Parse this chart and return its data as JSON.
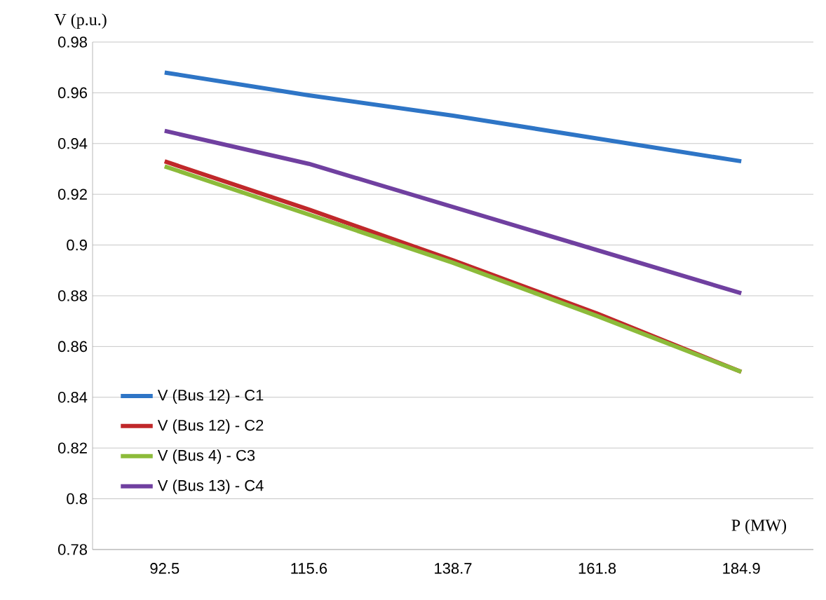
{
  "chart_data": {
    "type": "line",
    "xlabel": "P (MW)",
    "ylabel": "V (p.u.)",
    "categories": [
      "92.5",
      "115.6",
      "138.7",
      "161.8",
      "184.9"
    ],
    "series": [
      {
        "name": "V (Bus 12) - C1",
        "color": "#2e75c6",
        "values": [
          0.968,
          0.959,
          0.951,
          0.942,
          0.933
        ]
      },
      {
        "name": "V (Bus 12) - C2",
        "color": "#c0282a",
        "values": [
          0.933,
          0.914,
          0.894,
          0.873,
          0.85
        ]
      },
      {
        "name": "V (Bus 4) - C3",
        "color": "#8cbb3a",
        "values": [
          0.931,
          0.912,
          0.893,
          0.872,
          0.85
        ]
      },
      {
        "name": "V (Bus 13) - C4",
        "color": "#7040a0",
        "values": [
          0.945,
          0.932,
          0.915,
          0.898,
          0.881
        ]
      }
    ],
    "ylim": [
      0.78,
      0.98
    ],
    "yticks": [
      0.78,
      0.8,
      0.82,
      0.84,
      0.86,
      0.88,
      0.9,
      0.92,
      0.94,
      0.96,
      0.98
    ],
    "grid": "y",
    "legend": "bottom left",
    "marker": "none",
    "line_style": "solid"
  }
}
